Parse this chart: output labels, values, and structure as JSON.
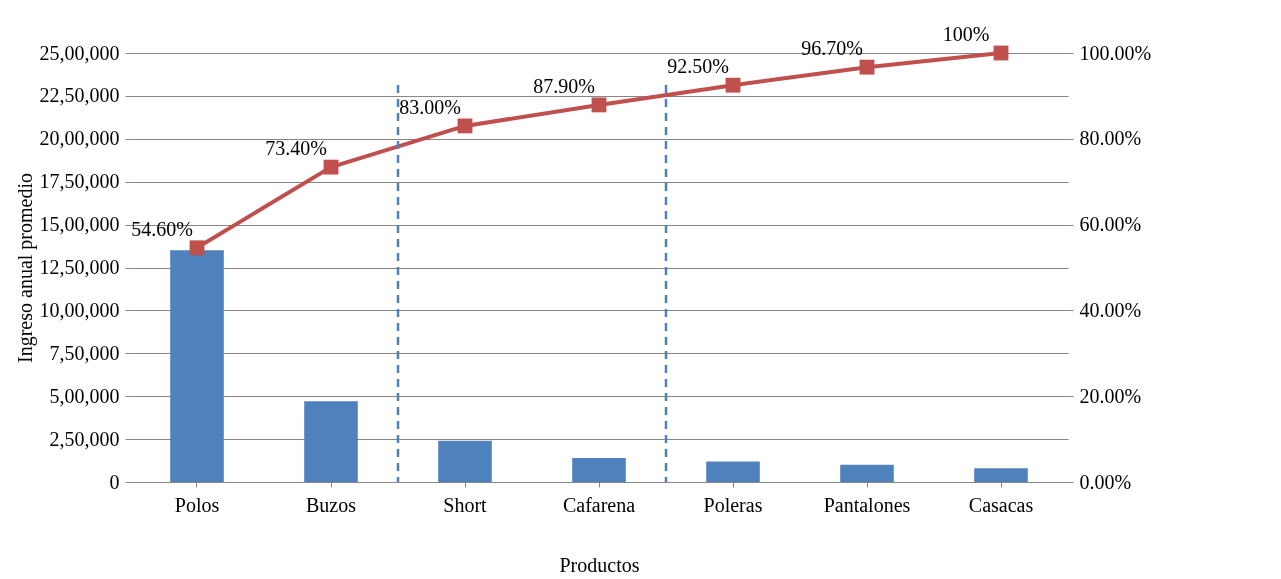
{
  "chart_data": {
    "type": "bar",
    "xlabel": "Productos",
    "ylabel": "Ingreso anual promedio",
    "categories": [
      "Polos",
      "Buzos",
      "Short",
      "Cafarena",
      "Poleras",
      "Pantalones",
      "Casacas"
    ],
    "series": [
      {
        "color": "#4f81bd",
        "values": [
          1350000,
          470000,
          240000,
          140000,
          120000,
          100000,
          80000
        ]
      },
      {
        "type": "line",
        "axis": "y2",
        "color": "#c0504d",
        "marker": "square",
        "values": [
          54.6,
          73.4,
          83.0,
          87.9,
          92.5,
          96.7,
          100
        ],
        "value_labels": [
          "54.60%",
          "73.40%",
          "83.00%",
          "87.90%",
          "92.50%",
          "96.70%",
          "100%"
        ]
      }
    ],
    "ylim": [
      0,
      2500000
    ],
    "yticks": [
      0,
      {
        "value": 250000,
        "label": "2,50,000"
      },
      {
        "value": 500000,
        "label": "5,00,000"
      },
      {
        "value": 750000,
        "label": "7,50,000"
      },
      {
        "value": 1000000,
        "label": "10,00,000"
      },
      {
        "value": 1250000,
        "label": "12,50,000"
      },
      {
        "value": 1500000,
        "label": "15,00,000"
      },
      {
        "value": 1750000,
        "label": "17,50,000"
      },
      {
        "value": 2000000,
        "label": "20,00,000"
      },
      {
        "value": 2250000,
        "label": "22,50,000"
      },
      {
        "value": 2500000,
        "label": "25,00,000"
      }
    ],
    "y2lim": [
      0,
      100
    ],
    "y2ticks": [
      {
        "value": 0,
        "label": "0.00%"
      },
      {
        "value": 20,
        "label": "20.00%"
      },
      {
        "value": 40,
        "label": "40.00%"
      },
      {
        "value": 60,
        "label": "60.00%"
      },
      {
        "value": 80,
        "label": "80.00%"
      },
      {
        "value": 100,
        "label": "100.00%"
      }
    ],
    "grid": "y"
  }
}
